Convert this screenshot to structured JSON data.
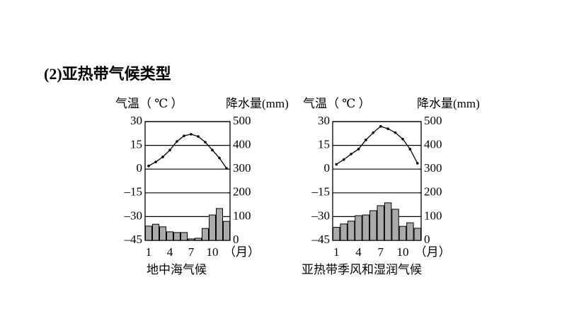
{
  "heading": "(2)亚热带气候类型",
  "chart_data": [
    {
      "type": "combo",
      "y_label": "气温（ ℃ ）",
      "y2_label": "降水量(mm)",
      "x_label": "（月）",
      "caption": "地中海气候",
      "categories": [
        "1",
        null,
        null,
        "4",
        null,
        null,
        "7",
        null,
        null,
        "10",
        null,
        null
      ],
      "ylim": [
        -45,
        30
      ],
      "yticks": [
        {
          "value": -45,
          "label": "–45"
        },
        {
          "value": -30,
          "label": "–30"
        },
        {
          "value": -15,
          "label": "–15"
        },
        0,
        15,
        30
      ],
      "y2lim": [
        0,
        500
      ],
      "y2ticks": [
        0,
        100,
        200,
        300,
        400,
        500
      ],
      "grid": true,
      "series": [
        {
          "type": "line",
          "color": "#000000",
          "values": [
            2,
            4.5,
            7.7,
            12,
            17.5,
            21,
            22,
            20.6,
            17,
            12,
            7,
            0.5
          ]
        },
        {
          "type": "bar",
          "axis": "y2",
          "color": "#aaaaaa",
          "values": [
            60,
            68,
            57,
            36,
            33,
            33,
            6,
            9,
            50,
            107,
            134,
            80
          ]
        }
      ]
    },
    {
      "type": "combo",
      "y_label": "气温（ ℃ ）",
      "y2_label": "降水量(mm)",
      "x_label": "（月）",
      "caption": "亚热带季风和湿润气候",
      "categories": [
        "1",
        null,
        null,
        "4",
        null,
        null,
        "7",
        null,
        null,
        "10",
        null,
        null
      ],
      "ylim": [
        -45,
        30
      ],
      "yticks": [
        {
          "value": -45,
          "label": "–45"
        },
        {
          "value": -30,
          "label": "–30"
        },
        {
          "value": -15,
          "label": "–15"
        },
        0,
        15,
        30
      ],
      "y2lim": [
        0,
        500
      ],
      "y2ticks": [
        0,
        100,
        200,
        300,
        400,
        500
      ],
      "grid": true,
      "series": [
        {
          "type": "line",
          "color": "#000000",
          "values": [
            3,
            6,
            9.5,
            12.6,
            18.4,
            23,
            27,
            25.5,
            23,
            19,
            12.6,
            3.7
          ]
        },
        {
          "type": "bar",
          "axis": "y2",
          "color": "#aaaaaa",
          "values": [
            55,
            69,
            81,
            104,
            107,
            125,
            146,
            158,
            131,
            59,
            74,
            51
          ]
        }
      ]
    }
  ]
}
